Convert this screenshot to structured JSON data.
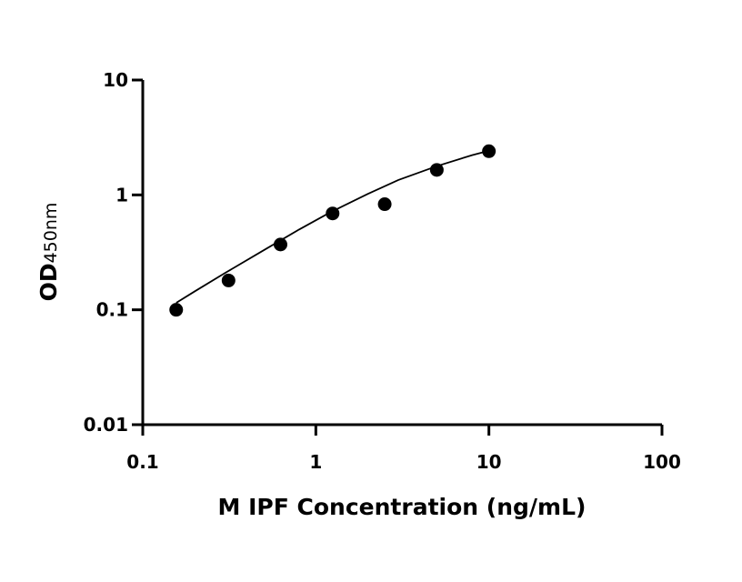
{
  "chart_data": {
    "type": "scatter",
    "xlabel": "M IPF Concentration (ng/mL)",
    "ylabel": "OD",
    "ylabel_sub": "450nm",
    "xscale": "log",
    "yscale": "log",
    "xlim": [
      0.1,
      100
    ],
    "ylim": [
      0.01,
      10
    ],
    "x_ticks": [
      0.1,
      1,
      10,
      100
    ],
    "x_tick_labels": [
      "0.1",
      "1",
      "10",
      "100"
    ],
    "y_ticks": [
      0.01,
      0.1,
      1,
      10
    ],
    "y_tick_labels": [
      "0.01",
      "0.1",
      "1",
      "10"
    ],
    "grid": false,
    "legend": false,
    "series": [
      {
        "x": [
          0.156,
          0.313,
          0.625,
          1.25,
          2.5,
          5,
          10
        ],
        "y": [
          0.1,
          0.18,
          0.37,
          0.69,
          0.83,
          1.65,
          2.4
        ],
        "marker": "circle",
        "color": "#000000"
      }
    ],
    "fit_curve": {
      "x": [
        0.156,
        0.2,
        0.3,
        0.5,
        0.8,
        1.2,
        2,
        3,
        5,
        8,
        10
      ],
      "y": [
        0.115,
        0.145,
        0.21,
        0.33,
        0.5,
        0.7,
        1.02,
        1.35,
        1.78,
        2.22,
        2.42
      ],
      "color": "#000000"
    }
  }
}
